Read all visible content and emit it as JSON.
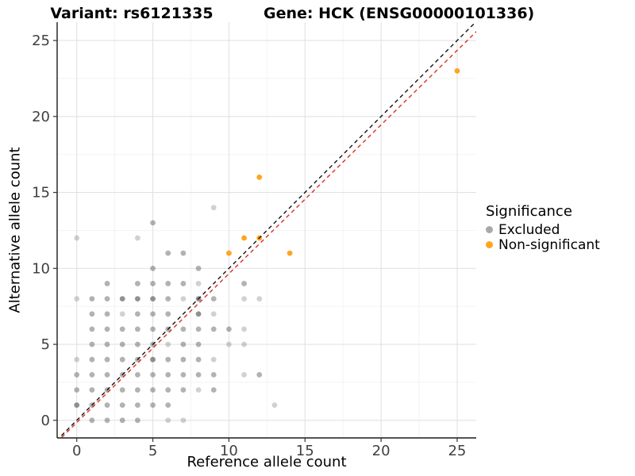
{
  "titles": {
    "variant": "Variant: rs6121335",
    "gene": "Gene: HCK (ENSG00000101336)"
  },
  "x_axis": {
    "label": "Reference allele count",
    "ticks": [
      0,
      5,
      10,
      15,
      20,
      25
    ],
    "range": [
      -1.3,
      26.25
    ]
  },
  "y_axis": {
    "label": "Alternative allele count",
    "ticks": [
      0,
      5,
      10,
      15,
      20,
      25
    ],
    "range": [
      -1.16,
      26.2
    ]
  },
  "legend": {
    "title": "Significance",
    "items": [
      {
        "label": "Excluded",
        "color": "#A9A9A9"
      },
      {
        "label": "Non-significant",
        "color": "#FFA51E"
      }
    ]
  },
  "colors": {
    "excluded_point": "#666666",
    "nonsignificant_point": "#FFA51E",
    "identity_line": "#111111",
    "fit_line": "#E02B20",
    "grid_major": "#E2E2E2",
    "grid_minor": "#F2F2F2",
    "axis_line": "#1A1A1A",
    "tick_text": "#404040"
  },
  "chart_data": {
    "type": "scatter",
    "title": "Variant: rs6121335 / Gene: HCK (ENSG00000101336)",
    "xlabel": "Reference allele count",
    "ylabel": "Alternative allele count",
    "xlim": [
      -1.3,
      26.25
    ],
    "ylim": [
      -1.16,
      26.2
    ],
    "grid": "on",
    "legend_position": "right",
    "alpha_levels": {
      "1": 0.3,
      "2": 0.5,
      "3": 0.72
    },
    "series": [
      {
        "name": "Excluded",
        "color": "#666666",
        "points_xya": [
          [
            1,
            0,
            2
          ],
          [
            2,
            0,
            2
          ],
          [
            3,
            0,
            2
          ],
          [
            4,
            0,
            2
          ],
          [
            6,
            0,
            1
          ],
          [
            7,
            0,
            1
          ],
          [
            0,
            1,
            3
          ],
          [
            1,
            1,
            2
          ],
          [
            2,
            1,
            2
          ],
          [
            3,
            1,
            2
          ],
          [
            4,
            1,
            2
          ],
          [
            5,
            1,
            2
          ],
          [
            6,
            1,
            2
          ],
          [
            13,
            1,
            1
          ],
          [
            0,
            2,
            2
          ],
          [
            1,
            2,
            2
          ],
          [
            2,
            2,
            2
          ],
          [
            3,
            2,
            2
          ],
          [
            4,
            2,
            2
          ],
          [
            5,
            2,
            2
          ],
          [
            6,
            2,
            2
          ],
          [
            7,
            2,
            2
          ],
          [
            8,
            2,
            1
          ],
          [
            9,
            2,
            2
          ],
          [
            0,
            3,
            2
          ],
          [
            1,
            3,
            2
          ],
          [
            2,
            3,
            2
          ],
          [
            3,
            3,
            2
          ],
          [
            4,
            3,
            2
          ],
          [
            5,
            3,
            2
          ],
          [
            6,
            3,
            2
          ],
          [
            7,
            3,
            2
          ],
          [
            8,
            3,
            2
          ],
          [
            9,
            3,
            2
          ],
          [
            11,
            3,
            1
          ],
          [
            12,
            3,
            2
          ],
          [
            0,
            4,
            1
          ],
          [
            1,
            4,
            2
          ],
          [
            2,
            4,
            2
          ],
          [
            3,
            4,
            2
          ],
          [
            4,
            4,
            2
          ],
          [
            5,
            4,
            3
          ],
          [
            6,
            4,
            2
          ],
          [
            7,
            4,
            2
          ],
          [
            8,
            4,
            2
          ],
          [
            9,
            4,
            1
          ],
          [
            1,
            5,
            2
          ],
          [
            2,
            5,
            2
          ],
          [
            3,
            5,
            2
          ],
          [
            4,
            5,
            2
          ],
          [
            5,
            5,
            2
          ],
          [
            6,
            5,
            1
          ],
          [
            7,
            5,
            2
          ],
          [
            8,
            5,
            2
          ],
          [
            10,
            5,
            1
          ],
          [
            11,
            5,
            1
          ],
          [
            1,
            6,
            2
          ],
          [
            2,
            6,
            2
          ],
          [
            3,
            6,
            2
          ],
          [
            4,
            6,
            2
          ],
          [
            5,
            6,
            2
          ],
          [
            6,
            6,
            2
          ],
          [
            7,
            6,
            2
          ],
          [
            8,
            6,
            2
          ],
          [
            9,
            6,
            2
          ],
          [
            10,
            6,
            2
          ],
          [
            11,
            6,
            1
          ],
          [
            1,
            7,
            2
          ],
          [
            2,
            7,
            2
          ],
          [
            3,
            7,
            1
          ],
          [
            4,
            7,
            2
          ],
          [
            5,
            7,
            2
          ],
          [
            6,
            7,
            2
          ],
          [
            8,
            7,
            3
          ],
          [
            9,
            7,
            1
          ],
          [
            0,
            8,
            1
          ],
          [
            1,
            8,
            2
          ],
          [
            2,
            8,
            2
          ],
          [
            3,
            8,
            3
          ],
          [
            4,
            8,
            3
          ],
          [
            5,
            8,
            3
          ],
          [
            6,
            8,
            2
          ],
          [
            7,
            8,
            1
          ],
          [
            8,
            8,
            3
          ],
          [
            9,
            8,
            2
          ],
          [
            11,
            8,
            1
          ],
          [
            12,
            8,
            1
          ],
          [
            2,
            9,
            2
          ],
          [
            4,
            9,
            2
          ],
          [
            5,
            9,
            2
          ],
          [
            6,
            9,
            2
          ],
          [
            7,
            9,
            2
          ],
          [
            8,
            9,
            1
          ],
          [
            11,
            9,
            2
          ],
          [
            5,
            10,
            2
          ],
          [
            8,
            10,
            2
          ],
          [
            6,
            11,
            2
          ],
          [
            7,
            11,
            2
          ],
          [
            0,
            12,
            1
          ],
          [
            4,
            12,
            1
          ],
          [
            5,
            13,
            2
          ],
          [
            9,
            14,
            1
          ]
        ]
      },
      {
        "name": "Non-significant",
        "color": "#FFA51E",
        "points_xya": [
          [
            10,
            11,
            4
          ],
          [
            11,
            12,
            4
          ],
          [
            12,
            12,
            4
          ],
          [
            12,
            16,
            4
          ],
          [
            14,
            11,
            4
          ],
          [
            25,
            23,
            4
          ]
        ]
      }
    ],
    "lines": [
      {
        "name": "identity-line",
        "color": "#111111",
        "slope": 1,
        "intercept": 0,
        "dash": "5 4"
      },
      {
        "name": "fit-line",
        "color": "#E02B20",
        "slope": 0.98,
        "intercept": -0.15,
        "dash": "5 4"
      }
    ]
  }
}
